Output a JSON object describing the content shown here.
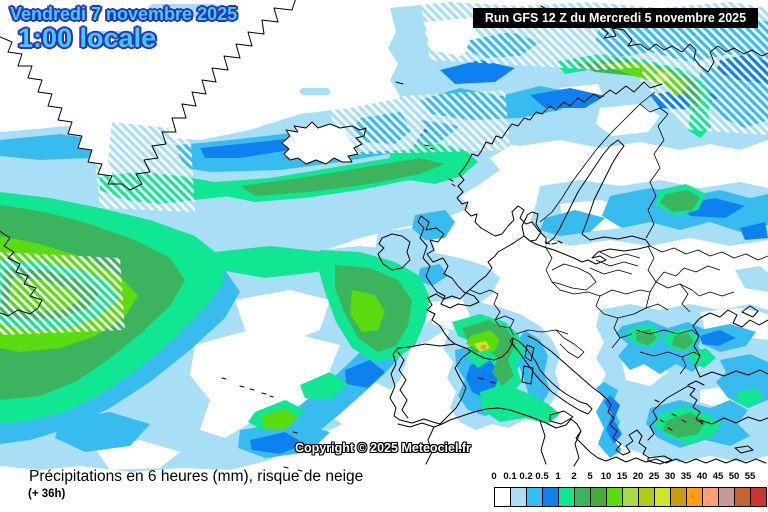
{
  "header": {
    "date_line1": "Vendredi 7 novembre 2025",
    "date_line2": "1:00 locale",
    "run_label": "Run GFS 12 Z du Mercredi 5 novembre 2025"
  },
  "map": {
    "copyright": "Copyright © 2025 Meteociel.fr",
    "region": "North Atlantic / Europe",
    "hatching_meaning": "risque de neige"
  },
  "footer": {
    "caption": "Précipitations en 6 heures (mm), risque de neige",
    "step": "(+ 36h)"
  },
  "legend": {
    "unit": "mm",
    "labels": [
      "0",
      "0.1",
      "0.2",
      "0.5",
      "1",
      "2",
      "5",
      "10",
      "15",
      "20",
      "25",
      "30",
      "35",
      "40",
      "45",
      "50",
      "55"
    ],
    "colors": [
      "#FFFFFF",
      "#A9DFF6",
      "#38BCEF",
      "#0E81F1",
      "#11E793",
      "#3CB45E",
      "#4BA83E",
      "#5ADC10",
      "#A8DC46",
      "#B5CC14",
      "#CCE62A",
      "#C89B10",
      "#FF9E14",
      "#FF9E73",
      "#C89A96",
      "#C06633",
      "#CC3333"
    ]
  },
  "colors": {
    "date_fill": "#41C9FF",
    "date_outline": "#2B35B5",
    "run_bg": "#000000",
    "run_fg": "#FFFFFF",
    "coast": "#000000",
    "sea": "#FFFFFF"
  }
}
